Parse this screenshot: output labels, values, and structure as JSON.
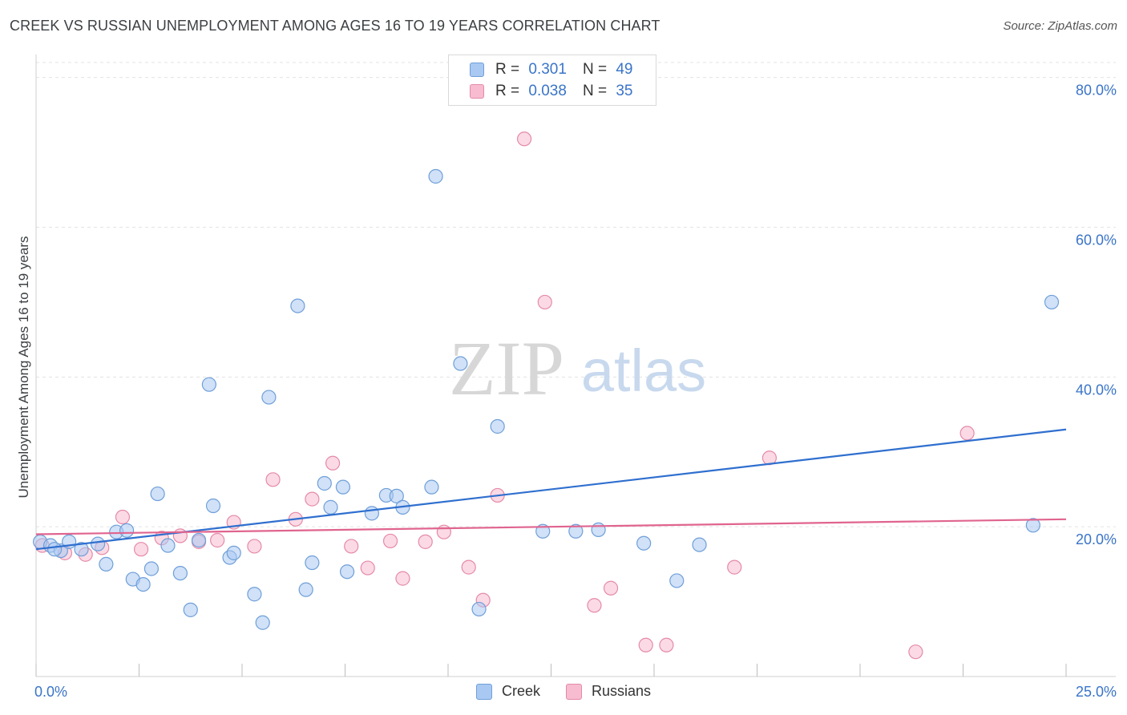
{
  "title": "CREEK VS RUSSIAN UNEMPLOYMENT AMONG AGES 16 TO 19 YEARS CORRELATION CHART",
  "source": "Source: ZipAtlas.com",
  "watermark": {
    "zip": "ZIP",
    "atlas": "atlas"
  },
  "legend": {
    "creek": {
      "r_label": "R =",
      "r_value": "0.301",
      "n_label": "N =",
      "n_value": "49"
    },
    "russians": {
      "r_label": "R =",
      "r_value": "0.038",
      "n_label": "N =",
      "n_value": "35"
    }
  },
  "colors": {
    "creek_fill": "#a9c9f2",
    "creek_stroke": "#6f9fd8",
    "creek_line": "#2f6fcf",
    "russians_fill": "#f7bcd0",
    "russians_stroke": "#e58aa8",
    "russians_line": "#e0648f",
    "axis_text": "#3a74c8",
    "grid": "#e3e3e3"
  },
  "chart_data": {
    "type": "scatter",
    "title": "CREEK VS RUSSIAN UNEMPLOYMENT AMONG AGES 16 TO 19 YEARS CORRELATION CHART",
    "xlabel": "",
    "ylabel": "Unemployment Among Ages 16 to 19 years",
    "xlim": [
      0,
      25
    ],
    "ylim": [
      0,
      82
    ],
    "x_tick_labels": [
      {
        "value": 0,
        "label": "0.0%"
      },
      {
        "value": 25,
        "label": "25.0%"
      }
    ],
    "y_tick_labels": [
      {
        "value": 20,
        "label": "20.0%"
      },
      {
        "value": 40,
        "label": "40.0%"
      },
      {
        "value": 60,
        "label": "60.0%"
      },
      {
        "value": 80,
        "label": "80.0%"
      }
    ],
    "series": [
      {
        "name": "Creek",
        "r": 0.301,
        "n": 49,
        "trend": {
          "x0": 0,
          "y0": 17.0,
          "x1": 25,
          "y1": 33.0
        },
        "points": [
          [
            0.1,
            18.0
          ],
          [
            0.35,
            17.5
          ],
          [
            0.6,
            16.8
          ],
          [
            0.8,
            18.0
          ],
          [
            1.1,
            17.0
          ],
          [
            1.5,
            17.7
          ],
          [
            1.7,
            15.0
          ],
          [
            1.95,
            19.3
          ],
          [
            2.2,
            19.5
          ],
          [
            2.35,
            13.0
          ],
          [
            2.6,
            12.3
          ],
          [
            2.8,
            14.4
          ],
          [
            2.95,
            24.4
          ],
          [
            3.2,
            17.5
          ],
          [
            3.5,
            13.8
          ],
          [
            3.75,
            8.9
          ],
          [
            3.95,
            18.2
          ],
          [
            4.2,
            39.0
          ],
          [
            4.3,
            22.8
          ],
          [
            4.7,
            15.9
          ],
          [
            4.8,
            16.5
          ],
          [
            5.3,
            11.0
          ],
          [
            5.5,
            7.2
          ],
          [
            5.65,
            37.3
          ],
          [
            6.35,
            49.5
          ],
          [
            6.55,
            11.6
          ],
          [
            6.7,
            15.2
          ],
          [
            7.0,
            25.8
          ],
          [
            7.15,
            22.6
          ],
          [
            7.45,
            25.3
          ],
          [
            7.55,
            14.0
          ],
          [
            8.15,
            21.8
          ],
          [
            8.5,
            24.2
          ],
          [
            8.75,
            24.1
          ],
          [
            8.9,
            22.6
          ],
          [
            9.6,
            25.3
          ],
          [
            9.7,
            66.8
          ],
          [
            10.3,
            41.8
          ],
          [
            10.75,
            9.0
          ],
          [
            11.2,
            33.4
          ],
          [
            12.3,
            19.4
          ],
          [
            13.1,
            19.4
          ],
          [
            13.65,
            19.6
          ],
          [
            14.75,
            17.8
          ],
          [
            15.55,
            12.8
          ],
          [
            16.1,
            17.6
          ],
          [
            24.2,
            20.2
          ],
          [
            24.65,
            50.0
          ],
          [
            0.45,
            17.0
          ]
        ]
      },
      {
        "name": "Russians",
        "r": 0.038,
        "n": 35,
        "trend": {
          "x0": 0,
          "y0": 19.0,
          "x1": 25,
          "y1": 21.0
        },
        "points": [
          [
            0.15,
            17.5
          ],
          [
            0.7,
            16.5
          ],
          [
            1.2,
            16.3
          ],
          [
            1.6,
            17.2
          ],
          [
            2.1,
            21.3
          ],
          [
            2.55,
            17.0
          ],
          [
            3.05,
            18.5
          ],
          [
            3.5,
            18.8
          ],
          [
            3.95,
            18.0
          ],
          [
            4.4,
            18.2
          ],
          [
            4.8,
            20.6
          ],
          [
            5.3,
            17.4
          ],
          [
            5.75,
            26.3
          ],
          [
            6.3,
            21.0
          ],
          [
            6.7,
            23.7
          ],
          [
            7.2,
            28.5
          ],
          [
            7.65,
            17.4
          ],
          [
            8.05,
            14.5
          ],
          [
            8.6,
            18.1
          ],
          [
            8.9,
            13.1
          ],
          [
            9.45,
            18.0
          ],
          [
            9.9,
            19.3
          ],
          [
            10.5,
            14.6
          ],
          [
            10.85,
            10.2
          ],
          [
            11.2,
            24.2
          ],
          [
            11.85,
            71.8
          ],
          [
            12.35,
            50.0
          ],
          [
            13.55,
            9.5
          ],
          [
            13.95,
            11.8
          ],
          [
            14.8,
            4.2
          ],
          [
            15.3,
            4.2
          ],
          [
            16.95,
            14.6
          ],
          [
            17.8,
            29.2
          ],
          [
            21.35,
            3.3
          ],
          [
            22.6,
            32.5
          ]
        ]
      }
    ]
  },
  "bottom_legend": {
    "creek": "Creek",
    "russians": "Russians"
  }
}
